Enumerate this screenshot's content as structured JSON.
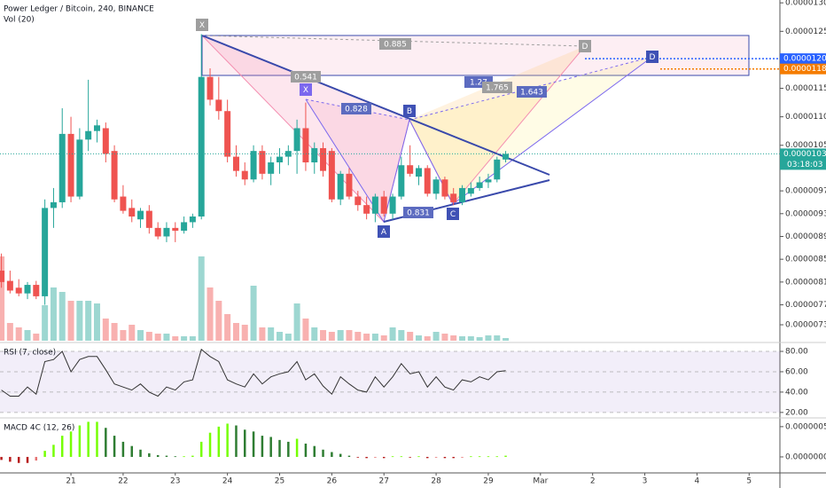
{
  "chart_data": [
    {
      "type": "candlestick",
      "title": "Power Ledger / Bitcoin, 240, BINANCE",
      "volume_label": "Vol (20)",
      "x": [
        19.667,
        19.833,
        20,
        20.167,
        20.333,
        20.5,
        20.667,
        20.833,
        21,
        21.167,
        21.333,
        21.5,
        21.667,
        21.833,
        22,
        22.167,
        22.333,
        22.5,
        22.667,
        22.833,
        23,
        23.167,
        23.333,
        23.5,
        23.667,
        23.833,
        24,
        24.167,
        24.333,
        24.5,
        24.667,
        24.833,
        25,
        25.167,
        25.333,
        25.5,
        25.667,
        25.833,
        26,
        26.167,
        26.333,
        26.5,
        26.667,
        26.833,
        27,
        27.167,
        27.333,
        27.5,
        27.667,
        27.833,
        28,
        28.167,
        28.333,
        28.5,
        28.667,
        28.833,
        29,
        29.167,
        29.333
      ],
      "open": [
        8.3e-06,
        8.12e-06,
        8e-06,
        7.9e-06,
        8.05e-06,
        7.85e-06,
        9.4e-06,
        9.5e-06,
        1.07e-05,
        9.6e-06,
        1.06e-05,
        1.075e-05,
        1.08e-05,
        1.04e-05,
        9.6e-06,
        9.4e-06,
        9.2e-06,
        9.35e-06,
        9.05e-06,
        8.9e-06,
        9.05e-06,
        9e-06,
        9.15e-06,
        9.25e-06,
        1.17e-05,
        1.13e-05,
        1.11e-05,
        1.03e-05,
        1.005e-05,
        9.9e-06,
        1.04e-05,
        1e-05,
        1.02e-05,
        1.03e-05,
        1.04e-05,
        1.08e-05,
        1.02e-05,
        1.045e-05,
        1.04e-05,
        9.55e-06,
        1e-05,
        9.6e-06,
        9.45e-06,
        9.3e-06,
        9.6e-06,
        9.3e-06,
        9.6e-06,
        1.015e-05,
        9.95e-06,
        1.01e-05,
        9.65e-06,
        9.9e-06,
        9.65e-06,
        9.5e-06,
        9.65e-06,
        9.75e-06,
        9.85e-06,
        9.9e-06,
        1.025e-05
      ],
      "high": [
        8.6e-06,
        8.3e-06,
        8.15e-06,
        8.1e-06,
        8.12e-06,
        9.55e-06,
        9.75e-06,
        1.115e-05,
        1.1e-05,
        1.08e-05,
        1.165e-05,
        1.095e-05,
        1.09e-05,
        1.05e-05,
        9.8e-06,
        9.55e-06,
        9.4e-06,
        9.45e-06,
        9.15e-06,
        9.15e-06,
        9.15e-06,
        9.25e-06,
        9.3e-06,
        1.245e-05,
        1.185e-05,
        1.17e-05,
        1.13e-05,
        1.05e-05,
        1.02e-05,
        1.05e-05,
        1.05e-05,
        1.03e-05,
        1.045e-05,
        1.05e-05,
        1.095e-05,
        1.125e-05,
        1.055e-05,
        1.055e-05,
        1.045e-05,
        1.005e-05,
        1.01e-05,
        9.7e-06,
        9.6e-06,
        9.65e-06,
        9.7e-06,
        9.65e-06,
        1.03e-05,
        1.05e-05,
        1.015e-05,
        1.015e-05,
        9.95e-06,
        9.95e-06,
        9.75e-06,
        9.8e-06,
        9.85e-06,
        9.95e-06,
        1e-05,
        1.03e-05,
        1.04e-05
      ],
      "low": [
        8e-06,
        7.9e-06,
        7.85e-06,
        7.8e-06,
        7.8e-06,
        7.7e-06,
        9.05e-06,
        9.4e-06,
        9.5e-06,
        9.55e-06,
        1.04e-05,
        1.055e-05,
        1.02e-05,
        9.5e-06,
        9.3e-06,
        9.15e-06,
        9.05e-06,
        8.95e-06,
        8.85e-06,
        8.8e-06,
        8.8e-06,
        8.95e-06,
        9.05e-06,
        9.2e-06,
        1.12e-05,
        1.095e-05,
        1.02e-05,
        9.95e-06,
        9.8e-06,
        9.85e-06,
        9.9e-06,
        9.8e-06,
        1e-05,
        1.015e-05,
        1e-05,
        1.005e-05,
        1e-05,
        9.95e-06,
        9.5e-06,
        9.45e-06,
        9.55e-06,
        9.35e-06,
        9.2e-06,
        9.15e-06,
        9.25e-06,
        9.2e-06,
        9.55e-06,
        9.95e-06,
        9.8e-06,
        9.6e-06,
        9.55e-06,
        9.55e-06,
        9.45e-06,
        9.45e-06,
        9.6e-06,
        9.7e-06,
        9.75e-06,
        9.85e-06,
        1.02e-05
      ],
      "close": [
        8.1e-06,
        7.95e-06,
        7.9e-06,
        8.05e-06,
        7.85e-06,
        9.4e-06,
        9.5e-06,
        1.07e-05,
        9.6e-06,
        1.06e-05,
        1.075e-05,
        1.085e-05,
        1.035e-05,
        9.55e-06,
        9.35e-06,
        9.25e-06,
        9.35e-06,
        9.05e-06,
        8.9e-06,
        9.05e-06,
        9e-06,
        9.15e-06,
        9.25e-06,
        1.17e-05,
        1.13e-05,
        1.11e-05,
        1.03e-05,
        1.005e-05,
        9.9e-06,
        1.04e-05,
        1e-05,
        1.02e-05,
        1.03e-05,
        1.04e-05,
        1.08e-05,
        1.02e-05,
        1.045e-05,
        1.005e-05,
        9.55e-06,
        1e-05,
        9.6e-06,
        9.45e-06,
        9.3e-06,
        9.6e-06,
        9.3e-06,
        9.6e-06,
        1.015e-05,
        1e-05,
        1.01e-05,
        9.65e-06,
        9.9e-06,
        9.6e-06,
        9.5e-06,
        9.75e-06,
        9.75e-06,
        9.85e-06,
        9.9e-06,
        1.025e-05,
        1.035e-05
      ],
      "volume": [
        95,
        20,
        15,
        12,
        8,
        40,
        60,
        55,
        45,
        45,
        45,
        42,
        25,
        20,
        12,
        18,
        12,
        10,
        8,
        8,
        5,
        5,
        5,
        95,
        60,
        45,
        30,
        20,
        18,
        62,
        15,
        15,
        10,
        8,
        42,
        25,
        15,
        12,
        10,
        12,
        12,
        10,
        8,
        8,
        6,
        15,
        12,
        10,
        6,
        5,
        10,
        8,
        6,
        5,
        5,
        4,
        6,
        6,
        3
      ],
      "up_color": "#26a69a",
      "down_color": "#ef5350",
      "xlim": [
        19.64,
        34.59
      ],
      "xticks": [
        21,
        22,
        23,
        24,
        25,
        26,
        27,
        28,
        29,
        {
          "value": 30,
          "label": "Mar"
        },
        {
          "value": 31,
          "label": "2"
        },
        {
          "value": 32,
          "label": "3"
        },
        {
          "value": 33,
          "label": "4"
        },
        {
          "value": 34,
          "label": "5"
        }
      ],
      "ylim": [
        7.07e-06,
        1.305e-05
      ],
      "yticks": [
        {
          "value": 1.3e-05,
          "label": "0.00001300"
        },
        {
          "value": 1.25e-05,
          "label": "0.00001250"
        },
        {
          "value": 1.15e-05,
          "label": "0.00001150"
        },
        {
          "value": 1.1e-05,
          "label": "0.00001100"
        },
        {
          "value": 1.05e-05,
          "label": "0.00001050"
        },
        {
          "value": 9.7e-06,
          "label": "0.00000970"
        },
        {
          "value": 9.3e-06,
          "label": "0.00000930"
        },
        {
          "value": 8.9e-06,
          "label": "0.00000890"
        },
        {
          "value": 8.5e-06,
          "label": "0.00000850"
        },
        {
          "value": 8.1e-06,
          "label": "0.00000810"
        },
        {
          "value": 7.7e-06,
          "label": "0.00000770"
        },
        {
          "value": 7.35e-06,
          "label": "0.00000735"
        }
      ],
      "price_markers": [
        {
          "value": 1.202e-05,
          "label": "0.00001202",
          "color": "#2962ff"
        },
        {
          "value": 1.184e-05,
          "label": "0.00001184",
          "color": "#f57c00"
        }
      ],
      "last_price": {
        "value": 1.035e-05,
        "label": "0.00001035",
        "countdown": "03:18:03",
        "color": "#26a69a"
      },
      "annotations": {
        "points": [
          "X",
          "X",
          "A",
          "B",
          "C",
          "D",
          "D"
        ],
        "ratios": [
          "0.885",
          "0.541",
          "0.828",
          "1.27",
          "1.765",
          "1.643",
          "0.831"
        ]
      }
    },
    {
      "type": "line",
      "title": "RSI (7, close)",
      "values": [
        42,
        36,
        36,
        45,
        38,
        70,
        72,
        80,
        60,
        72,
        75,
        75,
        62,
        48,
        45,
        42,
        48,
        40,
        36,
        45,
        42,
        50,
        52,
        82,
        75,
        70,
        52,
        48,
        45,
        58,
        48,
        55,
        58,
        60,
        70,
        52,
        58,
        46,
        38,
        55,
        48,
        42,
        40,
        55,
        45,
        55,
        68,
        58,
        60,
        45,
        55,
        45,
        42,
        52,
        50,
        55,
        52,
        60,
        61
      ],
      "color": "#333333",
      "band_color": "#7e57c2",
      "ylim": [
        15.5,
        87
      ],
      "yticks": [
        {
          "value": 80,
          "label": "80.00"
        },
        {
          "value": 60,
          "label": "60.00"
        },
        {
          "value": 40,
          "label": "40.00"
        },
        {
          "value": 20,
          "label": "20.00"
        }
      ]
    },
    {
      "type": "bar",
      "title": "MACD 4C (12, 26)",
      "values": [
        -5e-08,
        -8e-08,
        -1e-07,
        -1e-07,
        -6e-08,
        1e-07,
        2e-07,
        3.5e-07,
        4.2e-07,
        5.2e-07,
        5.8e-07,
        5.8e-07,
        4.8e-07,
        3.5e-07,
        2.5e-07,
        1.8e-07,
        1.2e-07,
        6e-08,
        3e-08,
        2e-08,
        1e-08,
        1e-08,
        2e-08,
        2.5e-07,
        4e-07,
        5e-07,
        5.5e-07,
        5.2e-07,
        4.5e-07,
        4.2e-07,
        3.5e-07,
        3.3e-07,
        2.8e-07,
        2.5e-07,
        3e-07,
        2.2e-07,
        1.8e-07,
        1.2e-07,
        8e-08,
        5e-08,
        2e-08,
        -1e-08,
        -2e-08,
        -1e-08,
        -2e-08,
        1e-08,
        1e-08,
        -1e-08,
        1e-08,
        -2e-08,
        -1e-08,
        -2e-08,
        -2e-08,
        -1e-08,
        1e-08,
        1e-08,
        1e-08,
        1e-08,
        2e-08
      ],
      "colors": {
        "rising_positive": "#76ff03",
        "falling_positive": "#2e7d32",
        "falling_negative": "#b71c1c",
        "rising_negative": "#e57373"
      },
      "ylim": [
        -2.5e-07,
        6.3e-07
      ],
      "yticks": [
        {
          "value": 5e-07,
          "label": "0.00000050"
        },
        {
          "value": 0,
          "label": "0.00000000"
        }
      ]
    }
  ]
}
